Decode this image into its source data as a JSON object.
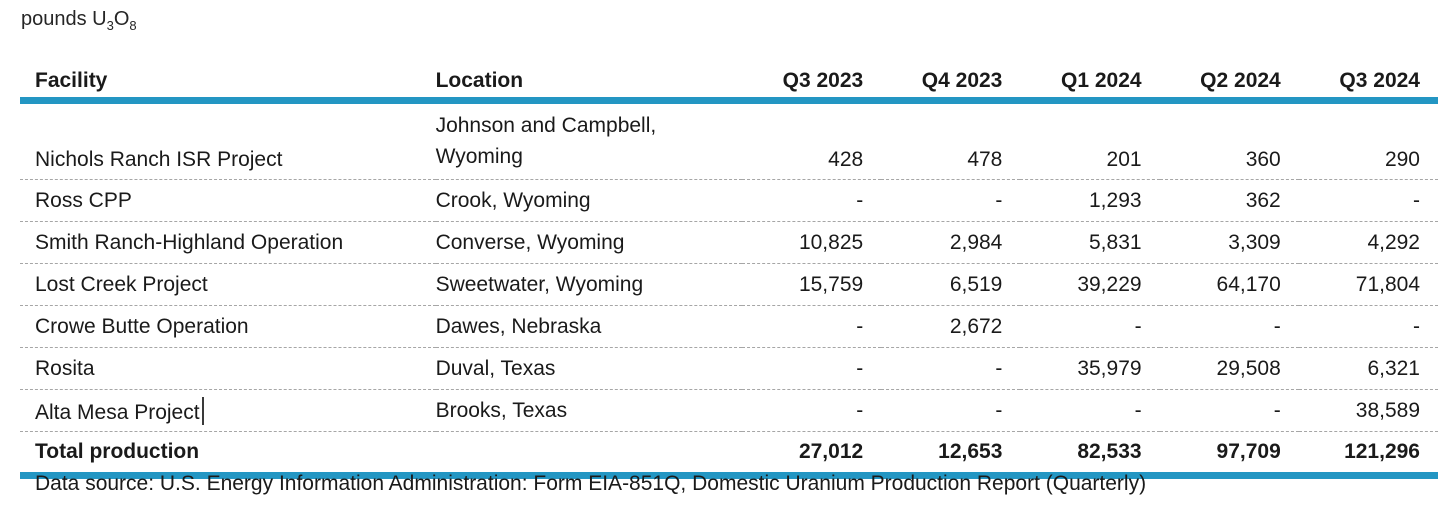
{
  "unit_label": {
    "main": "pounds U",
    "sub_a": "3",
    "mid": "O",
    "sub_b": "8"
  },
  "colors": {
    "accent_blue": "#2396c3",
    "row_separator_gray": "#a6a6a6",
    "text": "#1a1a1a"
  },
  "table": {
    "columns": [
      "Facility",
      "Location",
      "Q3 2023",
      "Q4 2023",
      "Q1 2024",
      "Q2 2024",
      "Q3 2024"
    ],
    "rows": [
      {
        "facility": "Nichols Ranch ISR Project",
        "location": "Johnson and Campbell, Wyoming",
        "values": [
          "428",
          "478",
          "201",
          "360",
          "290"
        ]
      },
      {
        "facility": "Ross CPP",
        "location": "Crook, Wyoming",
        "values": [
          "-",
          "-",
          "1,293",
          "362",
          "-"
        ]
      },
      {
        "facility": "Smith Ranch-Highland Operation",
        "location": "Converse, Wyoming",
        "values": [
          "10,825",
          "2,984",
          "5,831",
          "3,309",
          "4,292"
        ]
      },
      {
        "facility": "Lost Creek Project",
        "location": "Sweetwater, Wyoming",
        "values": [
          "15,759",
          "6,519",
          "39,229",
          "64,170",
          "71,804"
        ]
      },
      {
        "facility": "Crowe Butte Operation",
        "location": "Dawes, Nebraska",
        "values": [
          "-",
          "2,672",
          "-",
          "-",
          "-"
        ]
      },
      {
        "facility": "Rosita",
        "location": "Duval, Texas",
        "values": [
          "-",
          "-",
          "35,979",
          "29,508",
          "6,321"
        ]
      },
      {
        "facility": "Alta Mesa Project",
        "location": "Brooks, Texas",
        "values": [
          "-",
          "-",
          "-",
          "-",
          "38,589"
        ]
      }
    ],
    "total": {
      "label": "Total production",
      "values": [
        "27,012",
        "12,653",
        "82,533",
        "97,709",
        "121,296"
      ]
    }
  },
  "footer": {
    "source": "Data source: U.S. Energy Information Administration: Form EIA-851Q, Domestic Uranium Production Report (Quarterly)"
  },
  "chart_data": {
    "type": "table",
    "title": "pounds U3O8",
    "categories": [
      "Q3 2023",
      "Q4 2023",
      "Q1 2024",
      "Q2 2024",
      "Q3 2024"
    ],
    "series": [
      {
        "name": "Nichols Ranch ISR Project",
        "values": [
          428,
          478,
          201,
          360,
          290
        ]
      },
      {
        "name": "Ross CPP",
        "values": [
          null,
          null,
          1293,
          362,
          null
        ]
      },
      {
        "name": "Smith Ranch-Highland Operation",
        "values": [
          10825,
          2984,
          5831,
          3309,
          4292
        ]
      },
      {
        "name": "Lost Creek Project",
        "values": [
          15759,
          6519,
          39229,
          64170,
          71804
        ]
      },
      {
        "name": "Crowe Butte Operation",
        "values": [
          null,
          2672,
          null,
          null,
          null
        ]
      },
      {
        "name": "Rosita",
        "values": [
          null,
          null,
          35979,
          29508,
          6321
        ]
      },
      {
        "name": "Alta Mesa Project",
        "values": [
          null,
          null,
          null,
          null,
          38589
        ]
      },
      {
        "name": "Total production",
        "values": [
          27012,
          12653,
          82533,
          97709,
          121296
        ]
      }
    ]
  }
}
